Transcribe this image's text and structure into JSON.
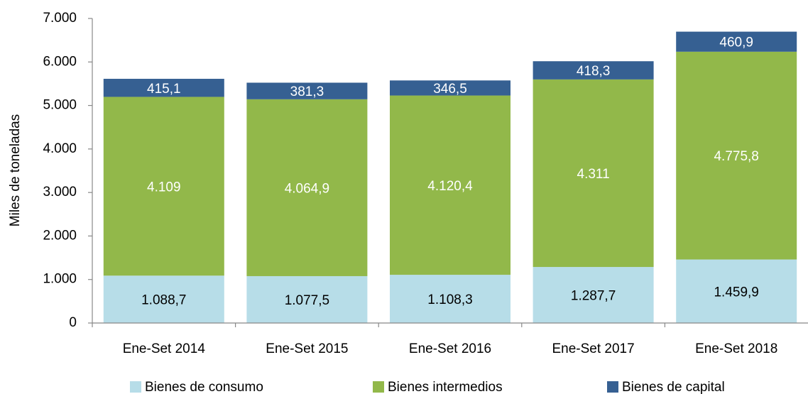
{
  "chart_data": {
    "type": "stacked_bar",
    "y_axis_label": "Miles de toneladas",
    "categories": [
      "Ene-Set 2014",
      "Ene-Set 2015",
      "Ene-Set 2016",
      "Ene-Set 2017",
      "Ene-Set 2018"
    ],
    "series": [
      {
        "name": "Bienes de consumo",
        "color": "#b7dde8",
        "label_color": "#000000",
        "values": [
          1088.7,
          1077.5,
          1108.3,
          1287.7,
          1459.9
        ],
        "value_labels": [
          "1.088,7",
          "1.077,5",
          "1.108,3",
          "1.287,7",
          "1.459,9"
        ]
      },
      {
        "name": "Bienes intermedios",
        "color": "#92b84a",
        "label_color": "#ffffff",
        "values": [
          4109,
          4064.9,
          4120.4,
          4311,
          4775.8
        ],
        "value_labels": [
          "4.109",
          "4.064,9",
          "4.120,4",
          "4.311",
          "4.775,8"
        ]
      },
      {
        "name": "Bienes de capital",
        "color": "#366092",
        "label_color": "#ffffff",
        "values": [
          415.1,
          381.3,
          346.5,
          418.3,
          460.9
        ],
        "value_labels": [
          "415,1",
          "381,3",
          "346,5",
          "418,3",
          "460,9"
        ]
      }
    ],
    "ylim": [
      0,
      7000
    ],
    "yticks": [
      0,
      {
        "value": 1000,
        "label": "1.000"
      },
      {
        "value": 2000,
        "label": "2.000"
      },
      {
        "value": 3000,
        "label": "3.000"
      },
      {
        "value": 4000,
        "label": "4.000"
      },
      {
        "value": 5000,
        "label": "5.000"
      },
      {
        "value": 6000,
        "label": "6.000"
      },
      {
        "value": 7000,
        "label": "7.000"
      }
    ],
    "legend": "bottom"
  }
}
